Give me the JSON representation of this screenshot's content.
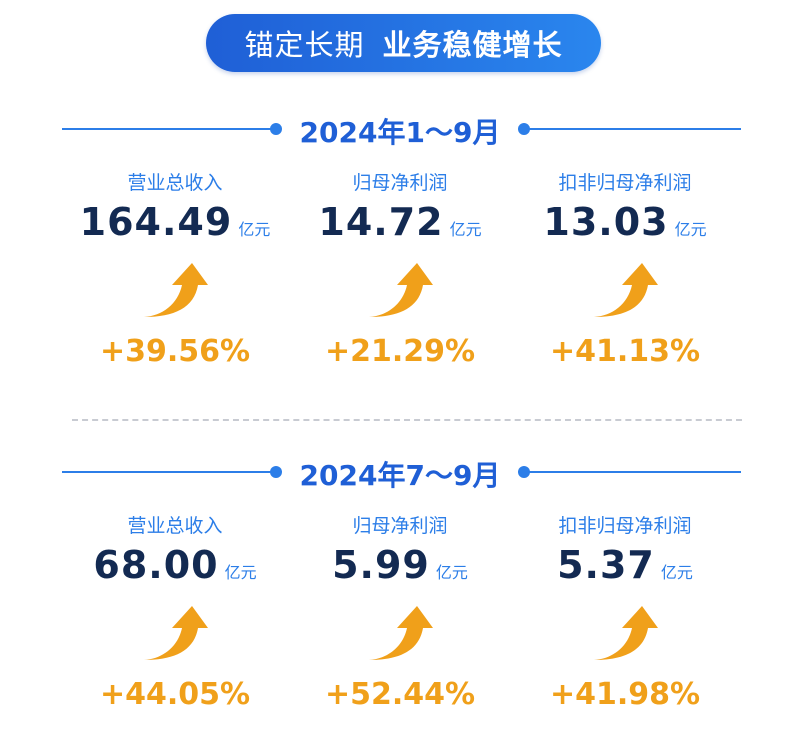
{
  "banner": {
    "part1": "锚定长期",
    "part2": "业务稳健增长"
  },
  "sections": [
    {
      "period": "2024年1～9月",
      "metrics": [
        {
          "label": "营业总收入",
          "value": "164.49",
          "unit": "亿元",
          "growth": "+39.56%"
        },
        {
          "label": "归母净利润",
          "value": "14.72",
          "unit": "亿元",
          "growth": "+21.29%"
        },
        {
          "label": "扣非归母净利润",
          "value": "13.03",
          "unit": "亿元",
          "growth": "+41.13%"
        }
      ]
    },
    {
      "period": "2024年7～9月",
      "metrics": [
        {
          "label": "营业总收入",
          "value": "68.00",
          "unit": "亿元",
          "growth": "+44.05%"
        },
        {
          "label": "归母净利润",
          "value": "5.99",
          "unit": "亿元",
          "growth": "+52.44%"
        },
        {
          "label": "扣非归母净利润",
          "value": "5.37",
          "unit": "亿元",
          "growth": "+41.98%"
        }
      ]
    }
  ],
  "colors": {
    "accent": "#2c7ee8",
    "value": "#132a52",
    "growth": "#f0a01a"
  },
  "icons": {
    "growth": "curved-up-arrow-icon"
  }
}
